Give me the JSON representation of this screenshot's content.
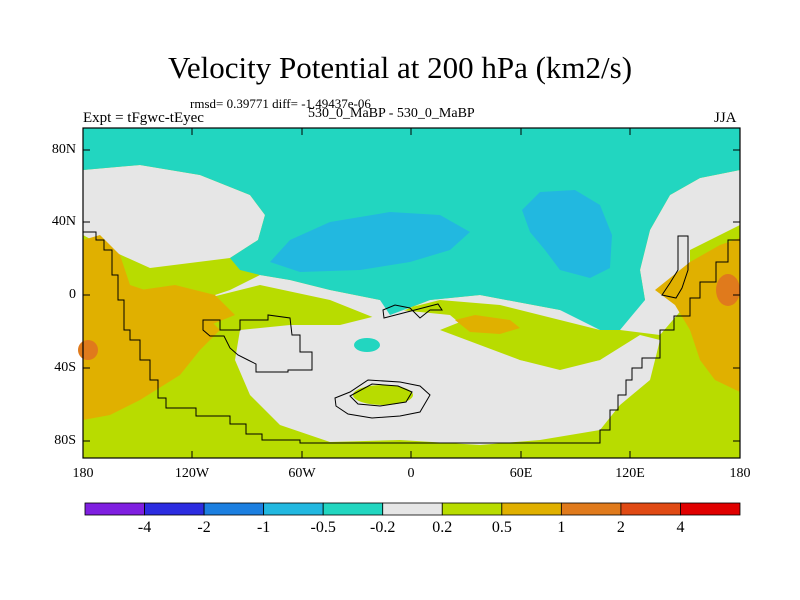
{
  "title": "Velocity Potential at 200 hPa (km2/s)",
  "stats": "rmsd= 0.39771  diff= -1.49437e-06",
  "experiment": "Expt = tFgwc-tEyec",
  "runs": "530_0_MaBP - 530_0_MaBP",
  "season": "JJA",
  "lat_labels": [
    "80N",
    "40N",
    "0",
    "40S",
    "80S"
  ],
  "lon_labels": [
    "180",
    "120W",
    "60W",
    "0",
    "60E",
    "120E",
    "180"
  ],
  "colorbar": {
    "colors": [
      "#7f1fe0",
      "#2c2ce0",
      "#1c7fe0",
      "#22b8e0",
      "#22d6c0",
      "#e6e6e6",
      "#b8dc00",
      "#e0b000",
      "#e07a1c",
      "#e04a14",
      "#e00000"
    ],
    "labels": [
      "-4",
      "-2",
      "-1",
      "-0.5",
      "-0.2",
      "0.2",
      "0.5",
      "1",
      "2",
      "4"
    ]
  }
}
